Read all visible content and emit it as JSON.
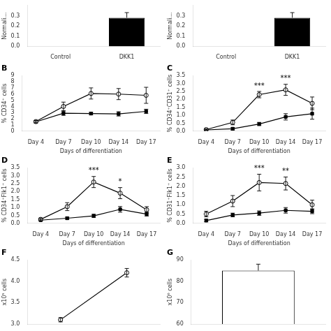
{
  "chart_data": [
    {
      "type": "bar",
      "categories": [
        "Control",
        "DKK1"
      ],
      "values": [
        0.0,
        0.28
      ],
      "error_plus": [
        null,
        0.05
      ],
      "colors": [
        "#ffffff",
        "#000000"
      ],
      "ylabel": "Normali…",
      "ylim": [
        0.0,
        0.4
      ],
      "yticks": [
        {
          "value": 0,
          "label": "0.0"
        },
        0.1,
        0.2,
        0.3
      ],
      "grid": false
    },
    {
      "type": "bar",
      "categories": [
        "Control",
        "DKK1"
      ],
      "values": [
        0.0,
        0.28
      ],
      "error_plus": [
        null,
        0.05
      ],
      "colors": [
        "#ffffff",
        "#000000"
      ],
      "ylabel": "Normali…",
      "ylim": [
        0.0,
        0.4
      ],
      "yticks": [
        {
          "value": 0,
          "label": "0.0"
        },
        0.1,
        0.2,
        0.3
      ],
      "grid": false
    },
    {
      "type": "line",
      "title": "B",
      "categories": [
        "Day 4",
        "Day 7",
        "Day 10",
        "Day 14",
        "Day 17"
      ],
      "xlabel": "Days of differentiation",
      "ylabel": "% CD34⁺ cells",
      "ylim": [
        0,
        9
      ],
      "yticks": [
        0,
        1,
        2,
        3,
        4,
        5,
        6,
        7,
        8,
        9
      ],
      "series": [
        {
          "color": "#000000",
          "marker": "circle-open",
          "values": [
            1.55,
            4.0,
            6.1,
            6.0,
            5.8
          ],
          "errors": [
            0.2,
            0.7,
            0.9,
            0.9,
            1.3
          ]
        },
        {
          "color": "#000000",
          "marker": "square",
          "values": [
            1.5,
            2.9,
            2.85,
            2.8,
            3.2
          ],
          "errors": [
            0.15,
            0.35,
            0.2,
            0.35,
            0.35
          ]
        }
      ],
      "grid": false
    },
    {
      "type": "line",
      "title": "C",
      "categories": [
        "Day 4",
        "Day 7",
        "Day 10",
        "Day 14",
        "Day 17"
      ],
      "xlabel": "Days of differentiation",
      "ylabel": "% CD34⁺CD31⁺ cells",
      "ylim": [
        0,
        3.5
      ],
      "yticks": [
        {
          "value": 0,
          "label": "0.0"
        },
        0.5,
        {
          "value": 1,
          "label": "1.0"
        },
        1.5,
        {
          "value": 2,
          "label": "2.0"
        },
        2.5,
        {
          "value": 3,
          "label": "3.0"
        },
        3.5
      ],
      "series": [
        {
          "color": "#000000",
          "marker": "circle-open",
          "values": [
            0.1,
            0.55,
            2.3,
            2.6,
            1.75
          ],
          "errors": [
            0.05,
            0.15,
            0.2,
            0.35,
            0.4
          ]
        },
        {
          "color": "#000000",
          "marker": "square",
          "values": [
            0.08,
            0.15,
            0.45,
            0.9,
            1.1
          ],
          "errors": [
            0.03,
            0.08,
            0.1,
            0.2,
            0.35
          ]
        }
      ],
      "annotations": [
        {
          "category": "Day 10",
          "text": "***"
        },
        {
          "category": "Day 14",
          "text": "***"
        }
      ],
      "grid": false
    },
    {
      "type": "line",
      "title": "D",
      "categories": [
        "Day 4",
        "Day 7",
        "Day 10",
        "Day 14",
        "Day 17"
      ],
      "xlabel": "Days of differentiation",
      "ylabel": "% CD34⁺Flk1⁺ cells",
      "ylim": [
        0,
        3.5
      ],
      "yticks": [
        {
          "value": 0,
          "label": "0.0"
        },
        0.5,
        {
          "value": 1,
          "label": "1.0"
        },
        1.5,
        {
          "value": 2,
          "label": "2.0"
        },
        2.5,
        {
          "value": 3,
          "label": "3.0"
        },
        3.5
      ],
      "series": [
        {
          "color": "#000000",
          "marker": "circle-open",
          "values": [
            0.25,
            1.05,
            2.6,
            1.9,
            0.85
          ],
          "errors": [
            0.08,
            0.25,
            0.35,
            0.35,
            0.2
          ]
        },
        {
          "color": "#000000",
          "marker": "square",
          "values": [
            0.2,
            0.32,
            0.47,
            0.88,
            0.58
          ],
          "errors": [
            0.05,
            0.07,
            0.1,
            0.18,
            0.12
          ]
        }
      ],
      "annotations": [
        {
          "category": "Day 10",
          "text": "***"
        },
        {
          "category": "Day 14",
          "text": "*"
        }
      ],
      "grid": false
    },
    {
      "type": "line",
      "title": "E",
      "categories": [
        "Day 4",
        "Day 7",
        "Day 10",
        "Day 14",
        "Day 17"
      ],
      "xlabel": "Days of differentiation",
      "ylabel": "% CD31⁺Flk1⁺ cells",
      "ylim": [
        0,
        3
      ],
      "yticks": [
        {
          "value": 0,
          "label": "0.0"
        },
        0.5,
        {
          "value": 1,
          "label": "1.0"
        },
        1.5,
        {
          "value": 2,
          "label": "2.0"
        },
        2.5,
        {
          "value": 3,
          "label": "3.0"
        }
      ],
      "series": [
        {
          "color": "#000000",
          "marker": "circle-open",
          "values": [
            0.5,
            1.2,
            2.2,
            2.15,
            1.0
          ],
          "errors": [
            0.15,
            0.3,
            0.45,
            0.35,
            0.25
          ]
        },
        {
          "color": "#000000",
          "marker": "square",
          "values": [
            0.15,
            0.45,
            0.55,
            0.7,
            0.65
          ],
          "errors": [
            0.07,
            0.1,
            0.12,
            0.15,
            0.13
          ]
        }
      ],
      "annotations": [
        {
          "category": "Day 10",
          "text": "***"
        },
        {
          "category": "Day 14",
          "text": "**"
        }
      ],
      "grid": false
    },
    {
      "type": "line",
      "title": "F",
      "categories": [
        null,
        null
      ],
      "ylabel": "x10⁵ cells",
      "ylim": [
        3.0,
        4.5
      ],
      "yticks": [
        {
          "value": 3,
          "label": "3.0"
        },
        3.5,
        {
          "value": 4,
          "label": "4.0"
        },
        4.5
      ],
      "series": [
        {
          "color": "#000000",
          "marker": "circle-open",
          "values": [
            3.1,
            4.2
          ],
          "errors": [
            0.05,
            0.1
          ]
        }
      ],
      "tick_labels": "y",
      "grid": false
    },
    {
      "type": "bar",
      "title": "G",
      "categories": [
        null
      ],
      "values": [
        85
      ],
      "error_plus": [
        3
      ],
      "colors": [
        "#ffffff"
      ],
      "ylabel": "x10⁶ cells",
      "ylim": [
        60,
        90
      ],
      "yticks": [
        60,
        70,
        80,
        90
      ],
      "tick_labels": "y",
      "grid": false
    }
  ]
}
